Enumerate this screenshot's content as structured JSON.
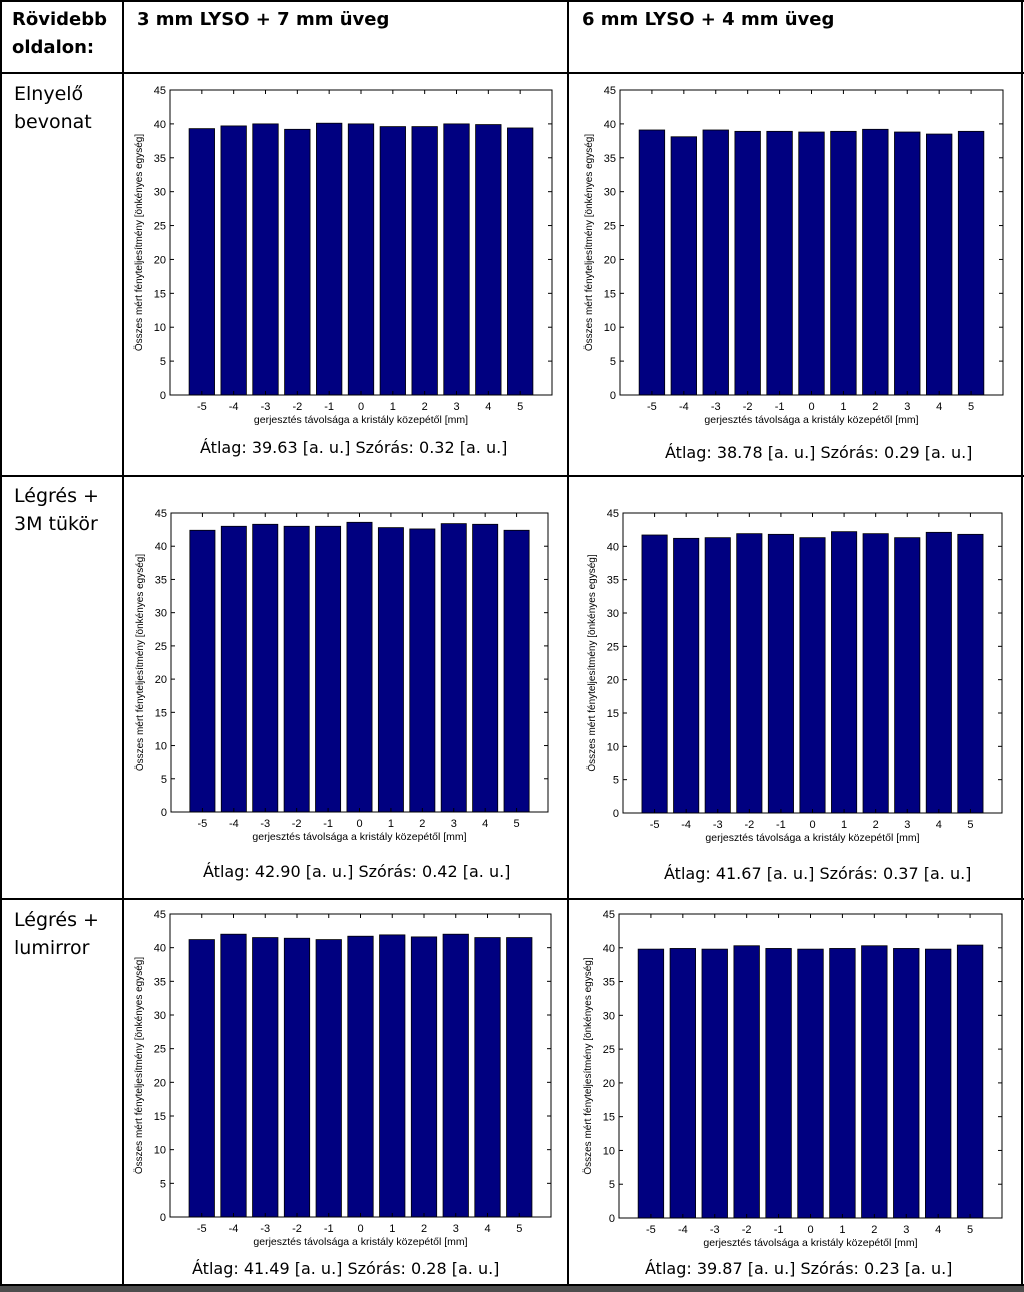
{
  "table": {
    "corner_header": "Rövidebb oldalon:",
    "col_headers": [
      "3 mm LYSO + 7 mm üveg",
      "6 mm LYSO + 4 mm üveg"
    ],
    "row_headers": [
      "Elnyelő bevonat",
      "Légrés + 3M tükör",
      "Légrés + lumirror"
    ],
    "stats": [
      [
        "Átlag: 39.63 [a. u.]   Szórás: 0.32 [a. u.]",
        "Átlag: 38.78 [a. u.]   Szórás: 0.29 [a. u.]"
      ],
      [
        "Átlag: 42.90 [a. u.]   Szórás: 0.42 [a. u.]",
        "Átlag: 41.67 [a. u.]   Szórás: 0.37 [a. u.]"
      ],
      [
        "Átlag: 41.49 [a. u.]   Szórás: 0.28 [a. u.]",
        "Átlag: 39.87 [a. u.]   Szórás: 0.23 [a. u.]"
      ]
    ]
  },
  "chart_style": {
    "bar_color": "#000080",
    "axis_color": "#000000"
  },
  "chart_data": [
    {
      "type": "bar",
      "xlabel": "gerjesztés távolsága a kristály közepétől [mm]",
      "ylabel": "Összes mért fényteljesítmény [önkényes egység]",
      "categories": [
        "-5",
        "-4",
        "-3",
        "-2",
        "-1",
        "0",
        "1",
        "2",
        "3",
        "4",
        "5"
      ],
      "values": [
        39.3,
        39.7,
        40.0,
        39.2,
        40.1,
        40.0,
        39.6,
        39.6,
        40.0,
        39.9,
        39.4
      ],
      "ylim": [
        0,
        45
      ],
      "yticks": [
        0,
        5,
        10,
        15,
        20,
        25,
        30,
        35,
        40,
        45
      ]
    },
    {
      "type": "bar",
      "xlabel": "gerjesztés távolsága a kristály közepétől [mm]",
      "ylabel": "Összes mért fényteljesítmény [önkényes egység]",
      "categories": [
        "-5",
        "-4",
        "-3",
        "-2",
        "-1",
        "0",
        "1",
        "2",
        "3",
        "4",
        "5"
      ],
      "values": [
        39.1,
        38.1,
        39.1,
        38.9,
        38.9,
        38.8,
        38.9,
        39.2,
        38.8,
        38.5,
        38.9
      ],
      "ylim": [
        0,
        45
      ],
      "yticks": [
        0,
        5,
        10,
        15,
        20,
        25,
        30,
        35,
        40,
        45
      ]
    },
    {
      "type": "bar",
      "xlabel": "gerjesztés távolsága a kristály közepétől [mm]",
      "ylabel": "Összes mért fényteljesítmény [önkényes egység]",
      "categories": [
        "-5",
        "-4",
        "-3",
        "-2",
        "-1",
        "0",
        "1",
        "2",
        "3",
        "4",
        "5"
      ],
      "values": [
        42.4,
        43.0,
        43.3,
        43.0,
        43.0,
        43.6,
        42.8,
        42.6,
        43.4,
        43.3,
        42.4
      ],
      "ylim": [
        0,
        45
      ],
      "yticks": [
        0,
        5,
        10,
        15,
        20,
        25,
        30,
        35,
        40,
        45
      ]
    },
    {
      "type": "bar",
      "xlabel": "gerjesztés távolsága a kristály közepétől [mm]",
      "ylabel": "Összes mért fényteljesítmény [önkényes egység]",
      "categories": [
        "-5",
        "-4",
        "-3",
        "-2",
        "-1",
        "0",
        "1",
        "2",
        "3",
        "4",
        "5"
      ],
      "values": [
        41.7,
        41.2,
        41.3,
        41.9,
        41.8,
        41.3,
        42.2,
        41.9,
        41.3,
        42.1,
        41.8
      ],
      "ylim": [
        0,
        45
      ],
      "yticks": [
        0,
        5,
        10,
        15,
        20,
        25,
        30,
        35,
        40,
        45
      ]
    },
    {
      "type": "bar",
      "xlabel": "gerjesztés távolsága a kristály közepétől [mm]",
      "ylabel": "Összes mért fényteljesítmény [önkényes egység]",
      "categories": [
        "-5",
        "-4",
        "-3",
        "-2",
        "-1",
        "0",
        "1",
        "2",
        "3",
        "4",
        "5"
      ],
      "values": [
        41.2,
        42.0,
        41.5,
        41.4,
        41.2,
        41.7,
        41.9,
        41.6,
        42.0,
        41.5,
        41.5
      ],
      "ylim": [
        0,
        45
      ],
      "yticks": [
        0,
        5,
        10,
        15,
        20,
        25,
        30,
        35,
        40,
        45
      ]
    },
    {
      "type": "bar",
      "xlabel": "gerjesztés távolsága a kristály közepétől [mm]",
      "ylabel": "Összes mért fényteljesítmény [önkényes egység]",
      "categories": [
        "-5",
        "-4",
        "-3",
        "-2",
        "-1",
        "0",
        "1",
        "2",
        "3",
        "4",
        "5"
      ],
      "values": [
        39.8,
        39.9,
        39.8,
        40.3,
        39.9,
        39.8,
        39.9,
        40.3,
        39.9,
        39.8,
        40.4
      ],
      "ylim": [
        0,
        45
      ],
      "yticks": [
        0,
        5,
        10,
        15,
        20,
        25,
        30,
        35,
        40,
        45
      ]
    }
  ]
}
